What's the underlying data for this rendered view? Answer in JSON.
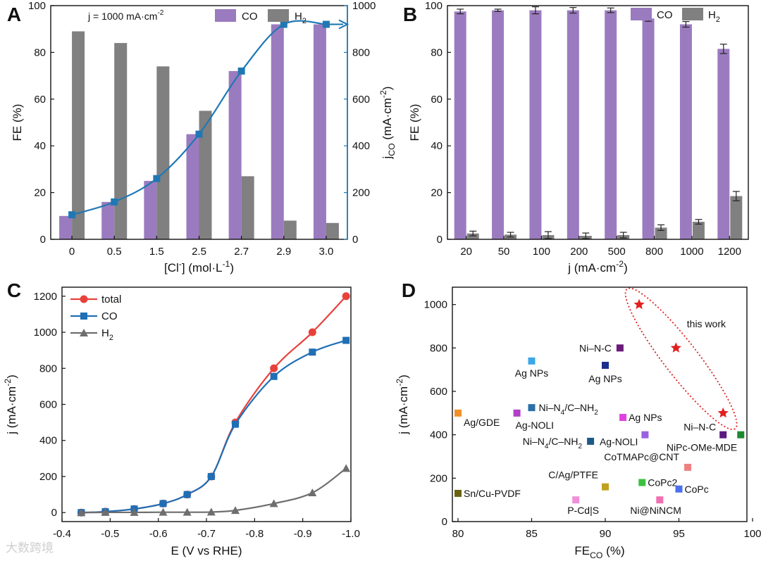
{
  "chart_data": [
    {
      "panel": "A",
      "type": "bar",
      "annotation": "j = 1000 mA·cm⁻²",
      "xlabel": "[Cl⁻] (mol·L⁻¹)",
      "ylabel": "FE (%)",
      "y2label": "jCO (mA·cm⁻²)",
      "categories": [
        "0",
        "0.5",
        "1.5",
        "2.5",
        "2.7",
        "2.9",
        "3.0"
      ],
      "ylim": [
        0,
        100
      ],
      "yticks": [
        0,
        20,
        40,
        60,
        80,
        100
      ],
      "y2lim": [
        0,
        1000
      ],
      "y2ticks": [
        0,
        200,
        400,
        600,
        800,
        1000
      ],
      "series": [
        {
          "name": "CO",
          "color": "#9b7bbf",
          "values": [
            10,
            16,
            25,
            45,
            72,
            92,
            92
          ]
        },
        {
          "name": "H2",
          "color": "#808080",
          "values": [
            89,
            84,
            74,
            55,
            27,
            8,
            7
          ]
        }
      ],
      "line": {
        "color": "#1f78b4",
        "values": [
          105,
          160,
          260,
          450,
          720,
          920,
          920
        ]
      }
    },
    {
      "panel": "B",
      "type": "bar",
      "xlabel": "j (mA·cm⁻²)",
      "ylabel": "FE (%)",
      "categories": [
        "20",
        "50",
        "100",
        "200",
        "500",
        "800",
        "1000",
        "1200"
      ],
      "ylim": [
        0,
        100
      ],
      "yticks": [
        0,
        20,
        40,
        60,
        80,
        100
      ],
      "series": [
        {
          "name": "CO",
          "color": "#9b7bbf",
          "values": [
            97.5,
            98,
            98,
            98,
            98,
            94.5,
            92,
            81.5
          ],
          "errors": [
            1,
            0.5,
            1.5,
            1.2,
            1,
            1.2,
            1.2,
            2
          ]
        },
        {
          "name": "H2",
          "color": "#808080",
          "values": [
            2.5,
            2,
            1.8,
            1.5,
            1.8,
            5,
            7.5,
            18.5
          ],
          "errors": [
            1,
            1,
            1.5,
            1.2,
            1.2,
            1.2,
            1,
            2
          ]
        }
      ]
    },
    {
      "panel": "C",
      "type": "line",
      "xlabel": "E (V vs RHE)",
      "ylabel": "j (mA·cm⁻²)",
      "xlim": [
        -0.4,
        -1.0
      ],
      "xticks": [
        -0.4,
        -0.5,
        -0.6,
        -0.7,
        -0.8,
        -0.9,
        -1.0
      ],
      "xticklabels": [
        "-0.4",
        "-0.5",
        "-0.6",
        "-0.7",
        "-0.8",
        "-0.9",
        "-1.0"
      ],
      "ylim": [
        -50,
        1250
      ],
      "yticks": [
        0,
        200,
        400,
        600,
        800,
        1000,
        1200
      ],
      "series": [
        {
          "name": "total",
          "color": "#e8413c",
          "marker": "circle",
          "x": [
            -0.44,
            -0.49,
            -0.55,
            -0.61,
            -0.66,
            -0.71,
            -0.76,
            -0.84,
            -0.92,
            -0.99
          ],
          "y": [
            0,
            5,
            20,
            50,
            100,
            200,
            500,
            800,
            1000,
            1200
          ]
        },
        {
          "name": "CO",
          "color": "#1f6fb5",
          "marker": "square",
          "x": [
            -0.44,
            -0.49,
            -0.55,
            -0.61,
            -0.66,
            -0.71,
            -0.76,
            -0.84,
            -0.92,
            -0.99
          ],
          "y": [
            0,
            5,
            20,
            50,
            100,
            200,
            490,
            755,
            890,
            955
          ]
        },
        {
          "name": "H2",
          "color": "#6e6e6e",
          "marker": "triangle",
          "x": [
            -0.44,
            -0.49,
            -0.55,
            -0.61,
            -0.66,
            -0.71,
            -0.76,
            -0.84,
            -0.92,
            -0.99
          ],
          "y": [
            0,
            1,
            1,
            2,
            2,
            3,
            12,
            50,
            110,
            245
          ]
        }
      ]
    },
    {
      "panel": "D",
      "type": "scatter",
      "xlabel": "FECO (%)",
      "ylabel": "j (mA·cm⁻²)",
      "xlim": [
        80,
        100
      ],
      "xticks": [
        80,
        85,
        90,
        95,
        100
      ],
      "ylim": [
        0,
        1080
      ],
      "yticks": [
        0,
        200,
        400,
        600,
        800,
        1000
      ],
      "annotation": "this work",
      "this_work": {
        "color": "#e02020",
        "x": [
          92.3,
          94.8,
          98.0
        ],
        "y": [
          1000,
          800,
          500
        ]
      },
      "points": [
        {
          "label": "Ag NPs",
          "x": 85,
          "y": 740,
          "color": "#3ba7e8"
        },
        {
          "label": "Ni–N-C",
          "x": 91,
          "y": 800,
          "color": "#6b1a7a"
        },
        {
          "label": "Ag NPs",
          "x": 90,
          "y": 720,
          "color": "#1c2f8f"
        },
        {
          "label": "Ni–N4/C–NH2",
          "x": 85,
          "y": 525,
          "color": "#2a6fa8"
        },
        {
          "label": "Ag/GDE",
          "x": 80,
          "y": 500,
          "color": "#f0902a"
        },
        {
          "label": "Ag-NOLI",
          "x": 84,
          "y": 500,
          "color": "#b040c8"
        },
        {
          "label": "Ag NPs",
          "x": 91.2,
          "y": 480,
          "color": "#e040e0"
        },
        {
          "label": "Ag-NOLI",
          "x": 92.7,
          "y": 400,
          "color": "#9a60e0"
        },
        {
          "label": "Ni–N-C",
          "x": 98,
          "y": 400,
          "color": "#5a1a80"
        },
        {
          "label": "NiPc-OMe-MDE",
          "x": 99.2,
          "y": 400,
          "color": "#1e8a2e"
        },
        {
          "label": "Ni–N4/C–NH2",
          "x": 89,
          "y": 370,
          "color": "#1b5a86"
        },
        {
          "label": "CoTMAPc@CNT",
          "x": 95.6,
          "y": 250,
          "color": "#ee8080"
        },
        {
          "label": "C/Ag/PTFE",
          "x": 90,
          "y": 160,
          "color": "#c0a020"
        },
        {
          "label": "CoPc2",
          "x": 92.5,
          "y": 180,
          "color": "#3cc040"
        },
        {
          "label": "CoPc",
          "x": 95,
          "y": 150,
          "color": "#4a70f0"
        },
        {
          "label": "Sn/Cu-PVDF",
          "x": 80,
          "y": 130,
          "color": "#6a6010"
        },
        {
          "label": "P-Cd|S",
          "x": 88,
          "y": 100,
          "color": "#f090d8"
        },
        {
          "label": "Ni@NiNCM",
          "x": 93.7,
          "y": 100,
          "color": "#f070b0"
        }
      ]
    }
  ],
  "watermark": "大数跨境"
}
